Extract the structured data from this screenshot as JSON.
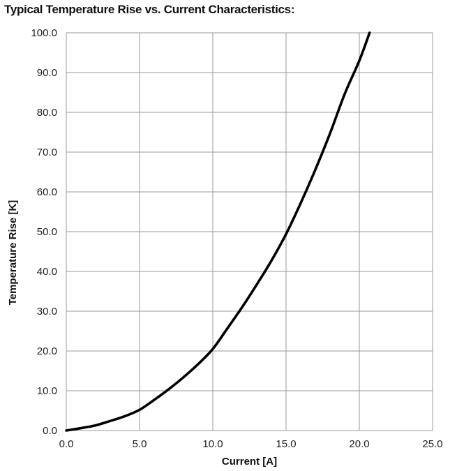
{
  "chart_data": {
    "type": "line",
    "title": "Typical Temperature Rise vs. Current Characteristics:",
    "xlabel": "Current [A]",
    "ylabel": "Temperature Rise [K]",
    "xlim": [
      0,
      25
    ],
    "ylim": [
      0,
      100
    ],
    "x_ticks": [
      "0.0",
      "5.0",
      "10.0",
      "15.0",
      "20.0",
      "25.0"
    ],
    "y_ticks": [
      "0.0",
      "10.0",
      "20.0",
      "30.0",
      "40.0",
      "50.0",
      "60.0",
      "70.0",
      "80.0",
      "90.0",
      "100.0"
    ],
    "grid": true,
    "legend": "none",
    "series": [
      {
        "x": [
          0,
          1,
          2,
          3,
          4,
          5,
          6,
          7,
          8,
          9,
          10,
          11,
          12,
          13,
          14,
          15,
          16,
          17,
          18,
          19,
          20,
          20.7
        ],
        "y": [
          0,
          0.6,
          1.3,
          2.4,
          3.6,
          5.2,
          7.7,
          10.4,
          13.4,
          16.7,
          20.5,
          25.7,
          31.0,
          36.7,
          42.7,
          49.4,
          57.2,
          65.6,
          74.7,
          84.6,
          93.0,
          100
        ]
      }
    ],
    "line_color": "#000000",
    "grid_color": "#9a9a9a"
  }
}
